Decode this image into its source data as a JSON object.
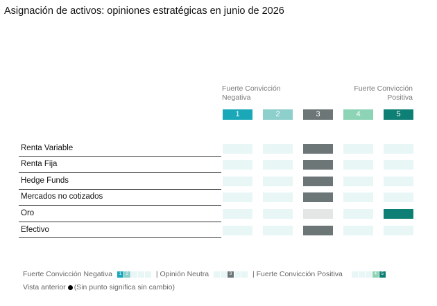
{
  "title": "Asignación de activos: opiniones estratégicas en junio de 2026",
  "scale": {
    "negative_label_lines": [
      "Fuerte Convicción",
      "Negativa"
    ],
    "positive_label_lines": [
      "Fuerte Convicción",
      "Positiva"
    ],
    "levels": [
      {
        "label": "1",
        "color": "#1aa8b8"
      },
      {
        "label": "2",
        "color": "#8ccfcb"
      },
      {
        "label": "3",
        "color": "#6d7677"
      },
      {
        "label": "4",
        "color": "#8dd3b6"
      },
      {
        "label": "5",
        "color": "#0e7f74"
      }
    ]
  },
  "colors": {
    "empty_cell": "#e8f6f6",
    "prior_neutral": "#e4e6e6"
  },
  "chart_data": {
    "type": "table",
    "title": "Asignación de activos: opiniones estratégicas en junio de 2026",
    "columns": [
      "1",
      "2",
      "3",
      "4",
      "5"
    ],
    "rows": [
      {
        "name": "Renta Variable",
        "current": 3,
        "prior": null
      },
      {
        "name": "Renta Fija",
        "current": 3,
        "prior": null
      },
      {
        "name": "Hedge Funds",
        "current": 3,
        "prior": null
      },
      {
        "name": "Mercados no cotizados",
        "current": 3,
        "prior": null
      },
      {
        "name": "Oro",
        "current": 5,
        "prior": 3
      },
      {
        "name": "Efectivo",
        "current": 3,
        "prior": null
      }
    ]
  },
  "legend": {
    "negative": "Fuerte Convicción Negativa",
    "neutral": "| Opinión Neutra",
    "positive": "| Fuerte Convicción Positiva",
    "box1": "1",
    "box2": "2",
    "box3": "3",
    "box4": "4",
    "box5": "5",
    "vista": "Vista anterior",
    "vista_note": "(Sin punto significa sin cambio)"
  }
}
